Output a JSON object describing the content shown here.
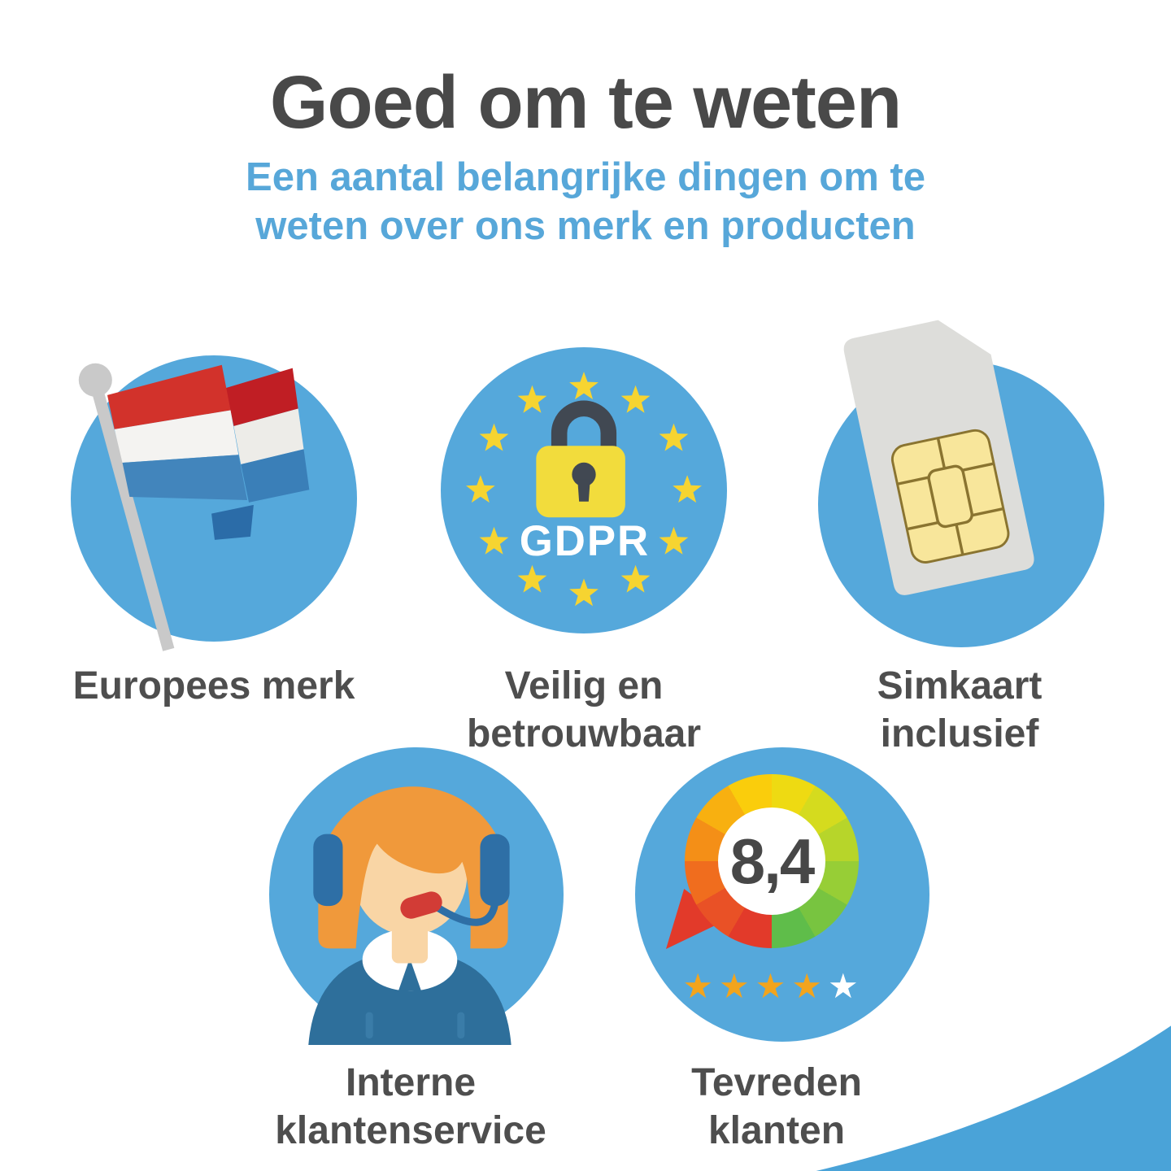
{
  "header": {
    "title": "Goed om te weten",
    "subtitle_line1": "Een aantal belangrijke dingen om te",
    "subtitle_line2": "weten over ons merk en producten"
  },
  "features": {
    "european_brand": {
      "label": "Europees merk",
      "icon": "dutch-flag-icon"
    },
    "safe_reliable": {
      "label_line1": "Veilig en",
      "label_line2": "betrouwbaar",
      "badge_text": "GDPR",
      "icon": "gdpr-lock-eu-stars-icon"
    },
    "sim_included": {
      "label_line1": "Simkaart",
      "label_line2": "inclusief",
      "icon": "sim-card-icon"
    },
    "customer_service": {
      "label_line1": "Interne",
      "label_line2": "klantenservice",
      "icon": "headset-agent-icon"
    },
    "satisfied_customers": {
      "label_line1": "Tevreden",
      "label_line2": "klanten",
      "rating_score": "8,4",
      "stars_filled": 4,
      "stars_total": 5,
      "icon": "rating-gauge-icon"
    }
  },
  "colors": {
    "accent_blue": "#55A8DB",
    "subtitle_blue": "#57A7D9",
    "title_gray": "#494949",
    "label_gray": "#4E4E4E",
    "star_gold": "#F2A41D",
    "gauge_low_red": "#E23A2A",
    "gauge_high_green": "#5FBD4A"
  }
}
